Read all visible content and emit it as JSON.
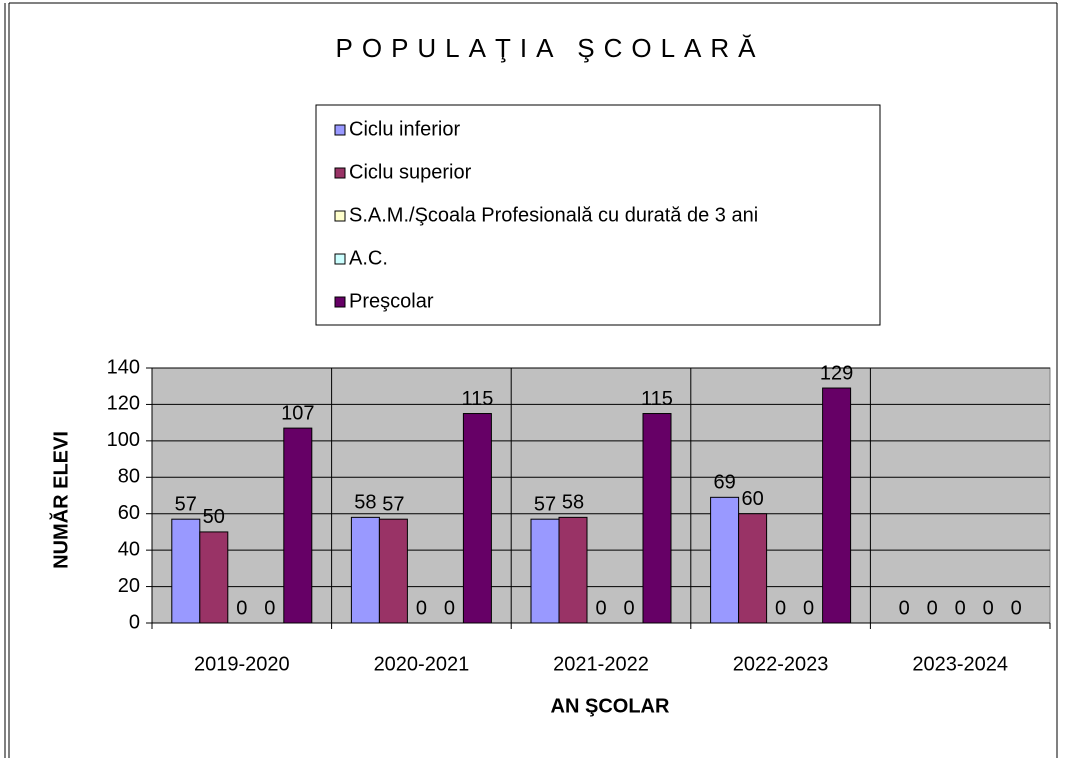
{
  "chart_data": {
    "type": "bar",
    "title": "POPULAŢIA ŞCOLARĂ",
    "x_label": "AN ŞCOLAR",
    "y_label": "NUMĂR ELEVI",
    "categories": [
      "2019-2020",
      "2020-2021",
      "2021-2022",
      "2022-2023",
      "2023-2024"
    ],
    "series": [
      {
        "name": "Ciclu inferior",
        "color": "#9999ff",
        "values": [
          57,
          58,
          57,
          69,
          0
        ]
      },
      {
        "name": "Ciclu superior",
        "color": "#993366",
        "values": [
          50,
          57,
          58,
          60,
          0
        ]
      },
      {
        "name": "S.A.M./Şcoala Profesională cu durată de 3 ani",
        "color": "#ffffcc",
        "values": [
          0,
          0,
          0,
          0,
          0
        ]
      },
      {
        "name": "A.C.",
        "color": "#ccffff",
        "values": [
          0,
          0,
          0,
          0,
          0
        ]
      },
      {
        "name": "Preşcolar",
        "color": "#660066",
        "values": [
          107,
          115,
          115,
          129,
          0
        ]
      }
    ],
    "ylim": [
      0,
      140
    ],
    "yticks": [
      0,
      20,
      40,
      60,
      80,
      100,
      120,
      140
    ],
    "grid": true,
    "legend": "top"
  }
}
